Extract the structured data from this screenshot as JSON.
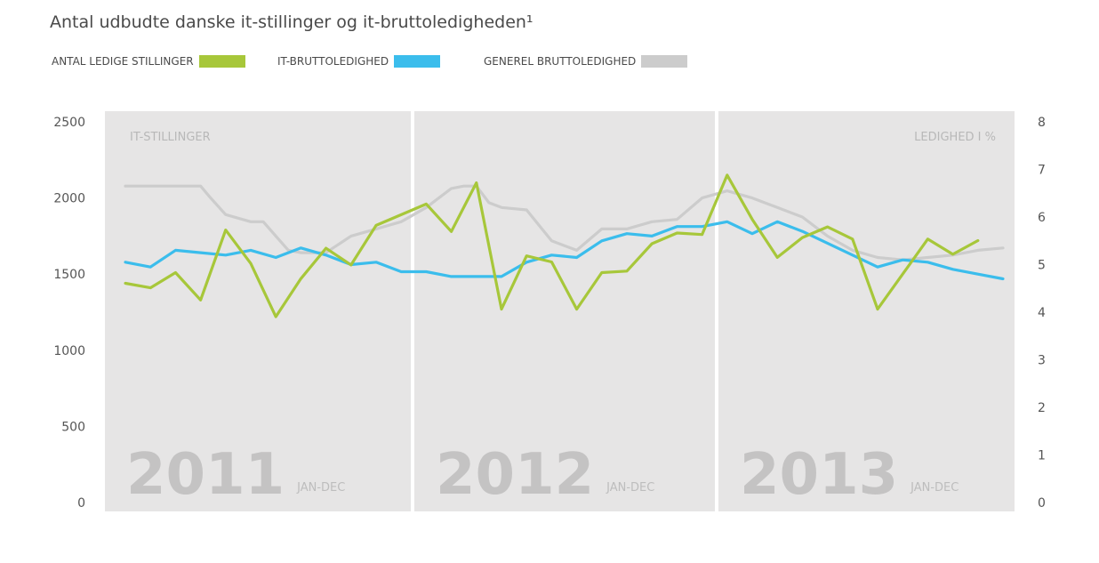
{
  "title": "Antal udbudte danske it-stillinger og it-bruttoledigheden¹",
  "legend": [
    {
      "label": "ANTAL LEDIGE STILLINGER",
      "color": "#a7c73a"
    },
    {
      "label": "IT-BRUTTOLEDIGHED",
      "color": "#3bbdec"
    },
    {
      "label": "GENEREL BRUTTOLEDIGHED",
      "color": "#cccccc"
    }
  ],
  "chart_data": {
    "type": "line",
    "left_axis_label": "IT-STILLINGER",
    "right_axis_label": "LEDIGHED I %",
    "y_left_range": [
      0,
      2500
    ],
    "y_left_ticks": [
      "0",
      "500",
      "1000",
      "1500",
      "2000",
      "2500"
    ],
    "y_right_range": [
      0,
      8
    ],
    "y_right_ticks": [
      "0",
      "1",
      "2",
      "3",
      "4",
      "5",
      "6",
      "7",
      "8"
    ],
    "panels": [
      {
        "year": "2011",
        "period": "JAN-DEC"
      },
      {
        "year": "2012",
        "period": "JAN-DEC"
      },
      {
        "year": "2013",
        "period": "JAN-DEC"
      }
    ],
    "series": [
      {
        "name": "ANTAL LEDIGE STILLINGER",
        "axis": "left",
        "color": "#a7c73a",
        "x": [
          0,
          1,
          2,
          3,
          4,
          5,
          6,
          7,
          8,
          9,
          10,
          11,
          12,
          13,
          14,
          15,
          16,
          17,
          18,
          19,
          20,
          21,
          22,
          23,
          24,
          25,
          26,
          27,
          28,
          29,
          30,
          31,
          32,
          33,
          34
        ],
        "values": [
          1440,
          1410,
          1510,
          1330,
          1790,
          1570,
          1220,
          1470,
          1670,
          1560,
          1820,
          1890,
          1960,
          1780,
          2100,
          1270,
          1620,
          1580,
          1270,
          1510,
          1520,
          1700,
          1770,
          1760,
          2150,
          1860,
          1610,
          1740,
          1810,
          1730,
          1270,
          1500,
          1730,
          1630,
          1720
        ]
      },
      {
        "name": "IT-BRUTTOLEDIGHED",
        "axis": "right",
        "color": "#3bbdec",
        "x": [
          0,
          1,
          2,
          3,
          4,
          5,
          6,
          7,
          8,
          9,
          10,
          11,
          12,
          13,
          14,
          15,
          16,
          17,
          18,
          19,
          20,
          21,
          22,
          23,
          24,
          25,
          26,
          27,
          28,
          29,
          30,
          31,
          32,
          33,
          34,
          35
        ],
        "values": [
          5.05,
          4.95,
          5.3,
          5.25,
          5.2,
          5.3,
          5.15,
          5.35,
          5.2,
          5.0,
          5.05,
          4.85,
          4.85,
          4.75,
          4.75,
          4.75,
          5.05,
          5.2,
          5.15,
          5.5,
          5.65,
          5.6,
          5.8,
          5.8,
          5.9,
          5.65,
          5.9,
          5.7,
          5.45,
          5.2,
          4.95,
          5.1,
          5.05,
          4.9,
          4.8,
          4.7
        ]
      },
      {
        "name": "GENEREL BRUTTOLEDIGHED",
        "axis": "right",
        "color": "#cccccc",
        "x": [
          0,
          1,
          2,
          3,
          3.4,
          4,
          5,
          5.5,
          6,
          6.5,
          7,
          8,
          9,
          10,
          11,
          12,
          13,
          13.5,
          14,
          14.5,
          15,
          16,
          17,
          18,
          19,
          20,
          21,
          22,
          23,
          24,
          25,
          26,
          27,
          28,
          29,
          30,
          31,
          32,
          33,
          34,
          35
        ],
        "values": [
          6.65,
          6.65,
          6.65,
          6.65,
          6.4,
          6.05,
          5.9,
          5.9,
          5.6,
          5.3,
          5.25,
          5.25,
          5.6,
          5.75,
          5.9,
          6.2,
          6.6,
          6.65,
          6.65,
          6.3,
          6.2,
          6.15,
          5.5,
          5.3,
          5.75,
          5.75,
          5.9,
          5.95,
          6.4,
          6.55,
          6.4,
          6.2,
          6.0,
          5.6,
          5.3,
          5.15,
          5.1,
          5.15,
          5.2,
          5.3,
          5.35
        ]
      }
    ]
  }
}
